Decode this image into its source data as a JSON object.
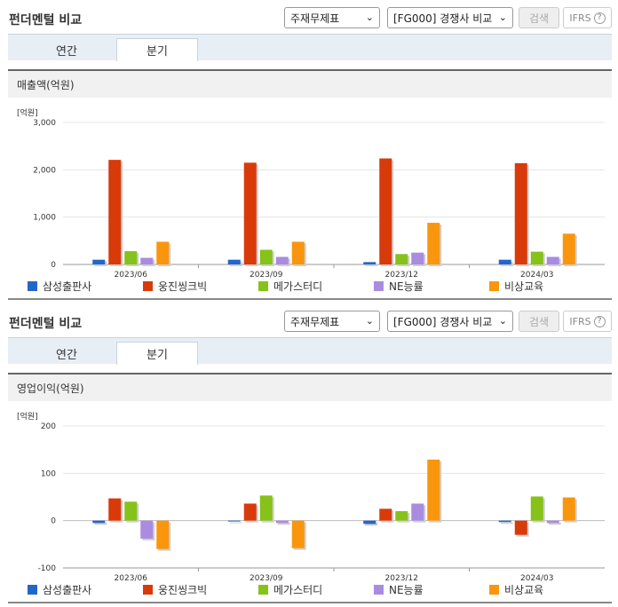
{
  "sections": [
    {
      "title": "펀더멘털 비교",
      "select1": "주재무제표",
      "select2": "[FG000] 경쟁사 비교",
      "search_btn": "검색",
      "ifrs_btn": "IFRS",
      "tabs": [
        "연간",
        "분기"
      ],
      "active_tab": "분기",
      "chart_title": "매출액(억원)",
      "unit": "[억원]"
    },
    {
      "title": "펀더멘털 비교",
      "select1": "주재무제표",
      "select2": "[FG000] 경쟁사 비교",
      "search_btn": "검색",
      "ifrs_btn": "IFRS",
      "tabs": [
        "연간",
        "분기"
      ],
      "active_tab": "분기",
      "chart_title": "영업이익(억원)",
      "unit": "[억원]"
    }
  ],
  "chart_data": [
    {
      "type": "bar",
      "title": "매출액(억원)",
      "ylabel": "[억원]",
      "categories": [
        "2023/06",
        "2023/09",
        "2023/12",
        "2024/03"
      ],
      "ylim": [
        0,
        3000
      ],
      "yticks": [
        0,
        1000,
        2000,
        3000
      ],
      "ytick_labels": [
        "0",
        "1,000",
        "2,000",
        "3,000"
      ],
      "grid": true,
      "legend": "bottom",
      "series": [
        {
          "name": "삼성출판사",
          "color": "#2466c8",
          "values": [
            100,
            100,
            50,
            100
          ]
        },
        {
          "name": "웅진씽크빅",
          "color": "#d93a0a",
          "values": [
            2210,
            2150,
            2240,
            2140
          ]
        },
        {
          "name": "메가스터디",
          "color": "#86c21a",
          "values": [
            280,
            310,
            220,
            270
          ]
        },
        {
          "name": "NE능률",
          "color": "#a98ce0",
          "values": [
            140,
            160,
            250,
            160
          ]
        },
        {
          "name": "비상교육",
          "color": "#f9960e",
          "values": [
            480,
            480,
            880,
            650
          ]
        }
      ]
    },
    {
      "type": "bar",
      "title": "영업이익(억원)",
      "ylabel": "[억원]",
      "categories": [
        "2023/06",
        "2023/09",
        "2023/12",
        "2024/03"
      ],
      "ylim": [
        -100,
        200
      ],
      "yticks": [
        -100,
        0,
        100,
        200
      ],
      "ytick_labels": [
        "-100",
        "0",
        "100",
        "200"
      ],
      "grid": true,
      "legend": "bottom",
      "series": [
        {
          "name": "삼성출판사",
          "color": "#2466c8",
          "values": [
            -5,
            0,
            -7,
            -3
          ]
        },
        {
          "name": "웅진씽크빅",
          "color": "#d93a0a",
          "values": [
            47,
            36,
            25,
            -30
          ]
        },
        {
          "name": "메가스터디",
          "color": "#86c21a",
          "values": [
            40,
            53,
            20,
            51
          ]
        },
        {
          "name": "NE능률",
          "color": "#a98ce0",
          "values": [
            -38,
            -5,
            36,
            -5
          ]
        },
        {
          "name": "비상교육",
          "color": "#f9960e",
          "values": [
            -60,
            -58,
            129,
            49
          ]
        }
      ]
    }
  ]
}
